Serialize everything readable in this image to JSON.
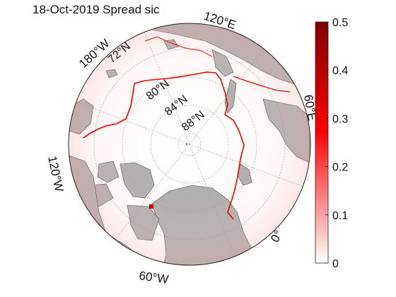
{
  "title": "18-Oct-2019 Spread sic",
  "map": {
    "projection": "north-polar-stereographic",
    "longitude_labels": [
      "120°E",
      "180°W",
      "120°W",
      "60°W",
      "0°",
      "60°E"
    ],
    "latitude_labels": [
      "72°N",
      "80°N",
      "84°N",
      "88°N"
    ],
    "colors": {
      "land": "#aaaaaa",
      "ocean": "#ffffff",
      "ice_edge": "#ee0000",
      "graticule": "#9a9a9a"
    }
  },
  "colorbar": {
    "min": 0,
    "max": 0.5,
    "ticks": [
      "0",
      "0.1",
      "0.2",
      "0.3",
      "0.4",
      "0.5"
    ],
    "colors": [
      "#ffffff",
      "#ff0000",
      "#800000"
    ]
  }
}
